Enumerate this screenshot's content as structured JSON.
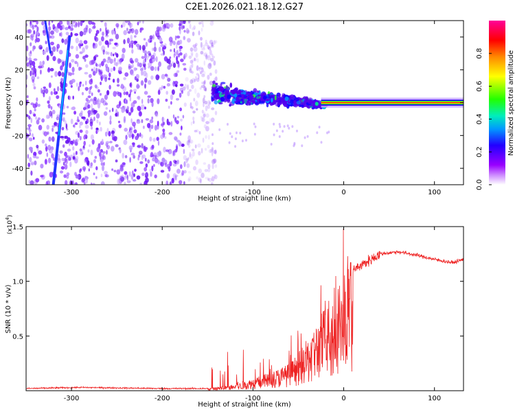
{
  "chart_data": [
    {
      "type": "heatmap",
      "title": "C2E1.2026.021.18.12.G27",
      "xlabel": "Height of straight line (km)",
      "ylabel": "Frequency (Hz)",
      "xlim": [
        -350,
        132
      ],
      "ylim": [
        -50,
        50
      ],
      "xticks": [
        -300,
        -200,
        -100,
        0,
        100
      ],
      "xtick_labels": [
        "-300",
        "-200",
        "-100",
        "0",
        "100"
      ],
      "yticks": [
        40,
        20,
        0,
        -20,
        -40
      ],
      "ytick_labels": [
        "40",
        "20",
        "0",
        "-20",
        "-40"
      ],
      "colorbar": {
        "label": "Normalized spectral amplitude",
        "range": [
          0,
          1
        ],
        "ticks": [
          0,
          0.2,
          0.4,
          0.6,
          0.8
        ],
        "tick_labels": [
          "0.0",
          "0.2",
          "0.4",
          "0.6",
          "0.8"
        ],
        "colors": [
          "#ffffff",
          "#9900ff",
          "#0000ff",
          "#00ccff",
          "#00ff00",
          "#ffff00",
          "#ff6600",
          "#ff0000",
          "#ff0099"
        ]
      },
      "features": {
        "noise_region_km": [
          -350,
          -140
        ],
        "direct_line": {
          "x_start_km": -320,
          "freq_start_hz": -50,
          "x_end_km": -302,
          "freq_end_hz": 40
        },
        "cluster_region_km": [
          -145,
          -20
        ],
        "cluster_freq_hz": [
          -10,
          15
        ],
        "tone_start_km": -25,
        "tone_freq_hz": 0
      }
    },
    {
      "type": "line",
      "xlabel": "Height of straight line (km)",
      "ylabel": "SNR (10 * v/v)",
      "exponent_label": "(x10",
      "exponent_power": "4",
      "exponent_close": ")",
      "xlim": [
        -350,
        132
      ],
      "ylim": [
        0,
        1.5
      ],
      "xticks": [
        -300,
        -200,
        -100,
        0,
        100
      ],
      "xtick_labels": [
        "-300",
        "-200",
        "-100",
        "0",
        "100"
      ],
      "yticks": [
        0.5,
        1.0,
        1.5
      ],
      "ytick_labels": [
        "0.5",
        "1.0",
        "1.5"
      ],
      "color": "#ee2222",
      "envelope_x": [
        -350,
        -290,
        -200,
        -150,
        -120,
        -100,
        -80,
        -60,
        -45,
        -30,
        -20,
        -10,
        0,
        5,
        10,
        20,
        30,
        40,
        60,
        80,
        100,
        120,
        132
      ],
      "envelope_y": [
        0.02,
        0.03,
        0.02,
        0.02,
        0.05,
        0.1,
        0.15,
        0.22,
        0.35,
        0.55,
        0.7,
        0.85,
        0.9,
        1.0,
        1.1,
        1.15,
        1.2,
        1.25,
        1.27,
        1.24,
        1.2,
        1.17,
        1.2
      ]
    }
  ]
}
